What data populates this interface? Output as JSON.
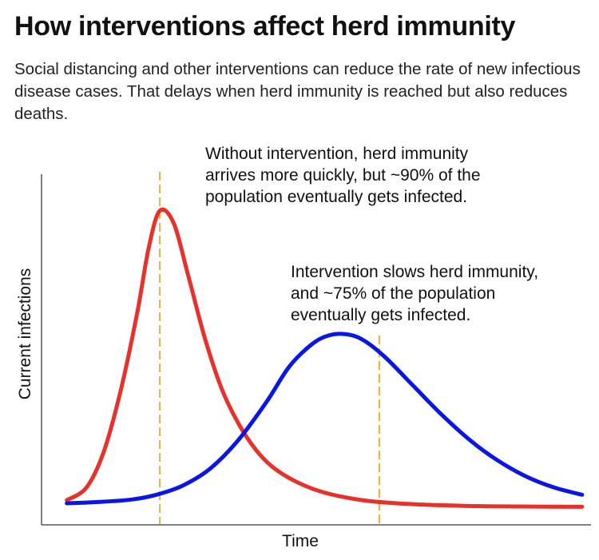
{
  "header": {
    "title": "How interventions affect herd immunity",
    "subtitle": "Social distancing and other interventions can reduce the rate of new infectious disease cases. That delays when herd immunity is reached but also reduces deaths."
  },
  "chart_data": {
    "type": "line",
    "xlabel": "Time",
    "ylabel": "Current infections",
    "grid": false,
    "legend": "none",
    "ylim": [
      0,
      1
    ],
    "xlim": [
      0,
      1
    ],
    "series": [
      {
        "color": "#e8312a",
        "peak": {
          "x": 0.21,
          "y": 0.94
        },
        "points": [
          [
            0.045,
            0.03
          ],
          [
            0.08,
            0.07
          ],
          [
            0.11,
            0.18
          ],
          [
            0.14,
            0.37
          ],
          [
            0.17,
            0.62
          ],
          [
            0.19,
            0.82
          ],
          [
            0.21,
            0.94
          ],
          [
            0.235,
            0.9
          ],
          [
            0.26,
            0.74
          ],
          [
            0.29,
            0.54
          ],
          [
            0.32,
            0.38
          ],
          [
            0.35,
            0.27
          ],
          [
            0.38,
            0.19
          ],
          [
            0.41,
            0.135
          ],
          [
            0.45,
            0.09
          ],
          [
            0.5,
            0.055
          ],
          [
            0.57,
            0.03
          ],
          [
            0.65,
            0.018
          ],
          [
            0.75,
            0.012
          ],
          [
            0.85,
            0.01
          ],
          [
            0.96,
            0.009
          ]
        ]
      },
      {
        "color": "#0a16e6",
        "peak": {
          "x": 0.54,
          "y": 0.55
        },
        "points": [
          [
            0.045,
            0.02
          ],
          [
            0.1,
            0.024
          ],
          [
            0.16,
            0.032
          ],
          [
            0.2,
            0.045
          ],
          [
            0.25,
            0.075
          ],
          [
            0.3,
            0.13
          ],
          [
            0.35,
            0.22
          ],
          [
            0.4,
            0.34
          ],
          [
            0.44,
            0.45
          ],
          [
            0.48,
            0.52
          ],
          [
            0.51,
            0.548
          ],
          [
            0.54,
            0.552
          ],
          [
            0.57,
            0.535
          ],
          [
            0.61,
            0.48
          ],
          [
            0.66,
            0.39
          ],
          [
            0.71,
            0.3
          ],
          [
            0.76,
            0.22
          ],
          [
            0.81,
            0.155
          ],
          [
            0.86,
            0.105
          ],
          [
            0.91,
            0.07
          ],
          [
            0.96,
            0.047
          ]
        ]
      }
    ],
    "reference_lines": [
      {
        "x": 0.21,
        "color": "#f0b040",
        "style": "dashed"
      },
      {
        "x": 0.6,
        "color": "#f0b040",
        "style": "dashed"
      }
    ],
    "annotations": [
      {
        "lines": [
          "Without intervention, herd immunity",
          "arrives more quickly, but ~90% of the",
          "population eventually gets infected."
        ]
      },
      {
        "lines": [
          "Intervention slows herd immunity,",
          "and ~75% of the population",
          "eventually gets infected."
        ]
      }
    ]
  }
}
